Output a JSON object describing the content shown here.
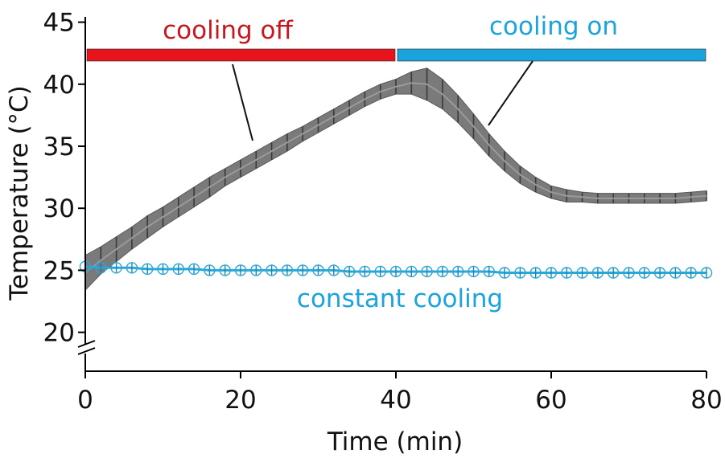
{
  "chart_data": {
    "type": "line",
    "xlabel": "Time (min)",
    "ylabel": "Temperature (°C)",
    "xlim": [
      0,
      80
    ],
    "ylim": [
      20,
      45
    ],
    "xticks": [
      0,
      20,
      40,
      60,
      80
    ],
    "yticks": [
      20,
      25,
      30,
      35,
      40,
      45
    ],
    "axis_break": "y-axis below 20",
    "grid": false,
    "series": [
      {
        "color": "#6e6e6e",
        "x": [
          0,
          2,
          4,
          6,
          8,
          10,
          12,
          14,
          16,
          18,
          20,
          22,
          24,
          26,
          28,
          30,
          32,
          34,
          36,
          38,
          40,
          42,
          44,
          46,
          48,
          50,
          52,
          54,
          56,
          58,
          60,
          62,
          64,
          66,
          68,
          70,
          72,
          74,
          76,
          78,
          80
        ],
        "y": [
          24.8,
          25.8,
          26.7,
          27.6,
          28.5,
          29.3,
          30.1,
          30.9,
          31.7,
          32.5,
          33.2,
          33.9,
          34.6,
          35.3,
          36.0,
          36.7,
          37.4,
          38.1,
          38.8,
          39.4,
          39.8,
          40.1,
          40.0,
          39.2,
          38.0,
          36.6,
          35.1,
          33.8,
          32.7,
          31.9,
          31.3,
          31.0,
          30.9,
          30.8,
          30.8,
          30.8,
          30.8,
          30.8,
          30.8,
          30.9,
          31.0
        ],
        "error": [
          1.4,
          1.1,
          1.0,
          0.9,
          0.9,
          0.8,
          0.8,
          0.8,
          0.8,
          0.7,
          0.7,
          0.7,
          0.7,
          0.7,
          0.6,
          0.6,
          0.6,
          0.6,
          0.6,
          0.6,
          0.6,
          0.9,
          1.3,
          1.2,
          1.1,
          1.0,
          0.9,
          0.8,
          0.7,
          0.6,
          0.5,
          0.5,
          0.4,
          0.4,
          0.4,
          0.4,
          0.4,
          0.4,
          0.4,
          0.4,
          0.4
        ]
      },
      {
        "name": "constant cooling",
        "color": "#2aa7d6",
        "x": [
          0,
          2,
          4,
          6,
          8,
          10,
          12,
          14,
          16,
          18,
          20,
          22,
          24,
          26,
          28,
          30,
          32,
          34,
          36,
          38,
          40,
          42,
          44,
          46,
          48,
          50,
          52,
          54,
          56,
          58,
          60,
          62,
          64,
          66,
          68,
          70,
          72,
          74,
          76,
          78,
          80
        ],
        "y": [
          25.3,
          25.2,
          25.2,
          25.2,
          25.1,
          25.1,
          25.1,
          25.1,
          25.0,
          25.0,
          25.0,
          25.0,
          25.0,
          25.0,
          25.0,
          25.0,
          25.0,
          24.9,
          24.9,
          24.9,
          24.9,
          24.9,
          24.9,
          24.9,
          24.9,
          24.9,
          24.9,
          24.8,
          24.8,
          24.8,
          24.8,
          24.8,
          24.8,
          24.8,
          24.8,
          24.8,
          24.8,
          24.8,
          24.8,
          24.8,
          24.8
        ]
      }
    ],
    "phase_bars": [
      {
        "label": "cooling off",
        "x_start": 0,
        "x_end": 40,
        "color": "#e8141c"
      },
      {
        "label": "cooling on",
        "x_start": 40,
        "x_end": 80,
        "color": "#1aa3dc"
      }
    ],
    "annotations": [
      {
        "text": "cooling off",
        "color": "#c8161d"
      },
      {
        "text": "cooling on",
        "color": "#1aa3dc"
      },
      {
        "text": "constant cooling",
        "color": "#1aa3dc"
      }
    ]
  }
}
